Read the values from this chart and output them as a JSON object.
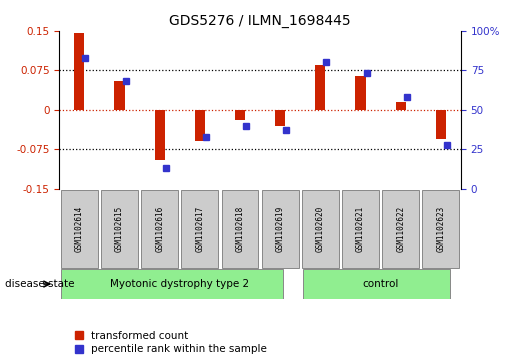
{
  "title": "GDS5276 / ILMN_1698445",
  "samples": [
    "GSM1102614",
    "GSM1102615",
    "GSM1102616",
    "GSM1102617",
    "GSM1102618",
    "GSM1102619",
    "GSM1102620",
    "GSM1102621",
    "GSM1102622",
    "GSM1102623"
  ],
  "red_values": [
    0.145,
    0.055,
    -0.095,
    -0.06,
    -0.02,
    -0.03,
    0.085,
    0.065,
    0.015,
    -0.055
  ],
  "blue_values_pct": [
    83,
    68,
    13,
    33,
    40,
    37,
    80,
    73,
    58,
    28
  ],
  "ylim_left": [
    -0.15,
    0.15
  ],
  "ylim_right": [
    0,
    100
  ],
  "yticks_left": [
    -0.15,
    -0.075,
    0,
    0.075,
    0.15
  ],
  "ytick_labels_left": [
    "-0.15",
    "-0.075",
    "0",
    "0.075",
    "0.15"
  ],
  "yticks_right": [
    0,
    25,
    50,
    75,
    100
  ],
  "ytick_labels_right": [
    "0",
    "25",
    "50",
    "75",
    "100%"
  ],
  "red_color": "#cc2200",
  "blue_color": "#3333cc",
  "disease_label": "disease state",
  "group1_label": "Myotonic dystrophy type 2",
  "group1_count": 6,
  "group2_label": "control",
  "group2_count": 4,
  "group_color": "#90ee90",
  "sample_box_color": "#cccccc",
  "legend_red": "transformed count",
  "legend_blue": "percentile rank within the sample",
  "bar_width": 0.25,
  "blue_marker_size": 60
}
